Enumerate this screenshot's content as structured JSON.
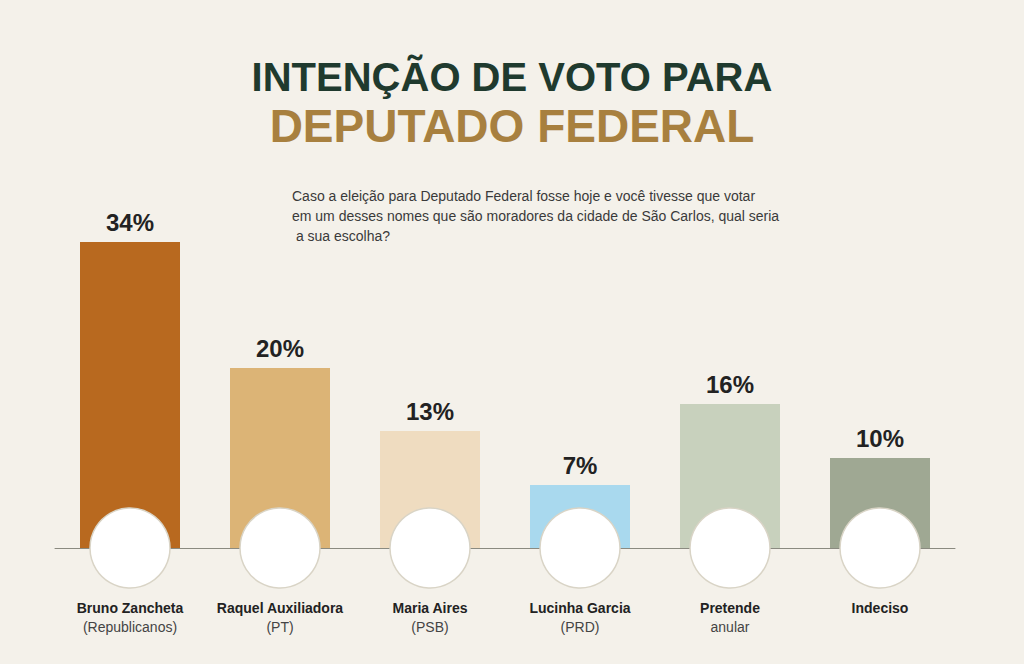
{
  "chart_data": {
    "type": "bar",
    "title": "INTENÇÃO DE VOTO PARA",
    "subtitle": "DEPUTADO FEDERAL",
    "annotations": [
      "Caso a eleição para Deputado Federal fosse hoje e você tivesse que votar em um desses nomes que são moradores da cidade de São Carlos, qual seria a sua escolha?"
    ],
    "categories": [
      "Bruno Zancheta\n(Republicanos)",
      "Raquel Auxiliadora\n(PT)",
      "Maria Aires\n(PSB)",
      "Lucinha Garcia\n(PRD)",
      "Pretende\nanular",
      "Indeciso"
    ],
    "values": [
      34,
      20,
      13,
      7,
      16,
      10
    ],
    "value_labels": [
      "34%",
      "20%",
      "13%",
      "7%",
      "16%",
      "10%"
    ],
    "colors": [
      "#b8691f",
      "#dcb476",
      "#efdcc0",
      "#a9d9ee",
      "#c8d1bd",
      "#9fa893"
    ],
    "ylim": [
      0,
      40
    ],
    "grid": false,
    "tick_labels": "x",
    "data_labels": true
  }
}
